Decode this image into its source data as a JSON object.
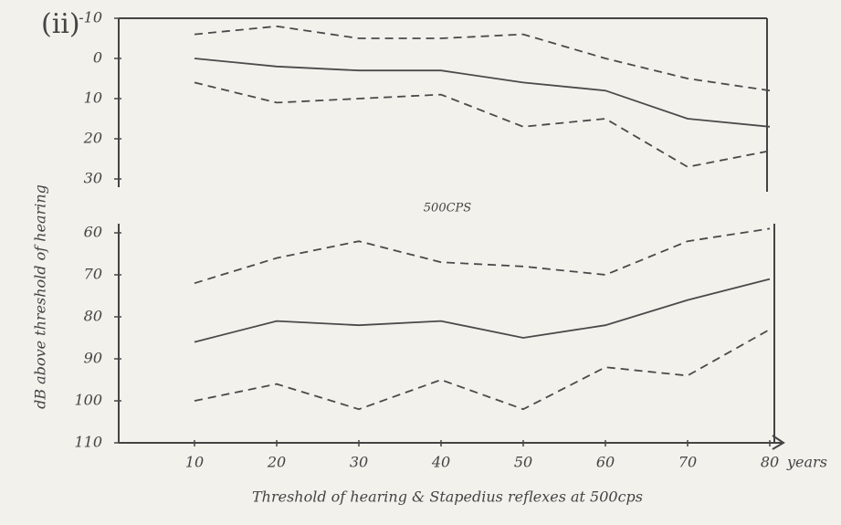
{
  "chart_data": [
    {
      "type": "line",
      "panel_label": "(ii)",
      "invert_y": true,
      "x": [
        10,
        20,
        30,
        40,
        50,
        60,
        70,
        80
      ],
      "xlim": [
        1,
        81
      ],
      "ylim": [
        -10,
        30
      ],
      "yticks": [
        -10,
        0,
        10,
        20,
        30
      ],
      "series": [
        {
          "color": "#4a4a4a",
          "style": "dashed",
          "values": [
            -6,
            -8,
            -5,
            -5,
            -6,
            0,
            5,
            8
          ]
        },
        {
          "color": "#4a4a4a",
          "style": "solid",
          "values": [
            0,
            2,
            3,
            3,
            6,
            8,
            15,
            17
          ]
        },
        {
          "color": "#4a4a4a",
          "style": "dashed",
          "values": [
            6,
            11,
            10,
            9,
            17,
            15,
            27,
            23
          ]
        }
      ]
    },
    {
      "type": "line",
      "title": "500CPS",
      "invert_y": true,
      "ylabel": "dB above threshold of hearing",
      "xlabel": "years",
      "caption": "Threshold of hearing & Stapedius reflexes at 500cps",
      "x": [
        10,
        20,
        30,
        40,
        50,
        60,
        70,
        80
      ],
      "xlim": [
        1,
        81
      ],
      "xticks": [
        10,
        20,
        30,
        40,
        50,
        60,
        70,
        80
      ],
      "ylim": [
        60,
        110
      ],
      "yticks": [
        60,
        70,
        80,
        90,
        100,
        110
      ],
      "series": [
        {
          "color": "#4a4a4a",
          "style": "dashed",
          "values": [
            72,
            66,
            62,
            67,
            68,
            70,
            62,
            59
          ]
        },
        {
          "color": "#4a4a4a",
          "style": "solid",
          "values": [
            86,
            81,
            82,
            81,
            85,
            82,
            76,
            71
          ]
        },
        {
          "color": "#4a4a4a",
          "style": "dashed",
          "values": [
            100,
            96,
            102,
            95,
            102,
            92,
            94,
            83
          ]
        }
      ]
    }
  ]
}
